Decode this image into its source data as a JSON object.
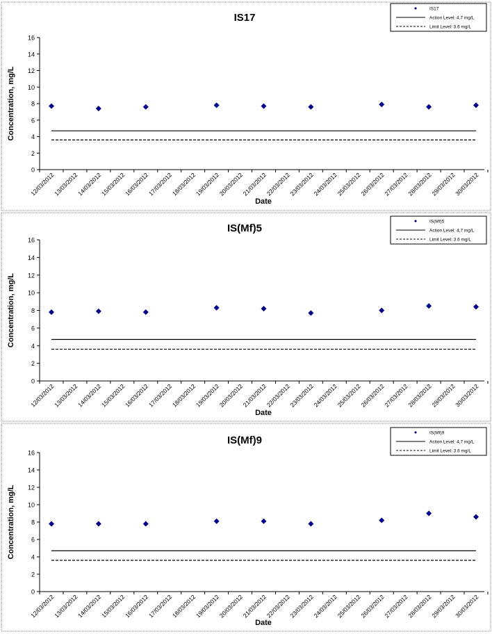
{
  "chart_data": [
    {
      "type": "scatter",
      "title": "IS17",
      "xlabel": "Date",
      "ylabel": "Concentration, mg/L",
      "ylim": [
        0,
        16
      ],
      "yticks": [
        "0",
        "2",
        "4",
        "6",
        "8",
        "10",
        "12",
        "14",
        "16"
      ],
      "categories": [
        "12/03/2012",
        "13/03/2012",
        "14/03/2012",
        "15/03/2012",
        "16/03/2012",
        "17/03/2012",
        "18/03/2012",
        "19/03/2012",
        "20/03/2012",
        "21/03/2012",
        "22/03/2012",
        "23/03/2012",
        "24/03/2012",
        "25/03/2012",
        "26/03/2012",
        "27/03/2012",
        "28/03/2012",
        "29/03/2012",
        "30/03/2012"
      ],
      "series": [
        {
          "name": "IS17",
          "x": [
            "12/03/2012",
            "14/03/2012",
            "16/03/2012",
            "19/03/2012",
            "21/03/2012",
            "23/03/2012",
            "26/03/2012",
            "28/03/2012",
            "30/03/2012"
          ],
          "y": [
            7.7,
            7.4,
            7.6,
            7.8,
            7.7,
            7.6,
            7.9,
            7.6,
            7.8
          ]
        }
      ],
      "reference_lines": [
        {
          "name": "Action Level: 4.7 mg/L",
          "value": 4.7,
          "style": "solid"
        },
        {
          "name": "Limit Level: 3.6 mg/L",
          "value": 3.6,
          "style": "dashed"
        }
      ],
      "legend": "top-right",
      "grid": false
    },
    {
      "type": "scatter",
      "title": "IS(Mf)5",
      "xlabel": "Date",
      "ylabel": "Concentration, mg/L",
      "ylim": [
        0,
        16
      ],
      "yticks": [
        "0",
        "2",
        "4",
        "6",
        "8",
        "10",
        "12",
        "14",
        "16"
      ],
      "categories": [
        "12/03/2012",
        "13/03/2012",
        "14/03/2012",
        "15/03/2012",
        "16/03/2012",
        "17/03/2012",
        "18/03/2012",
        "19/03/2012",
        "20/03/2012",
        "21/03/2012",
        "22/03/2012",
        "23/03/2012",
        "24/03/2012",
        "25/03/2012",
        "26/03/2012",
        "27/03/2012",
        "28/03/2012",
        "29/03/2012",
        "30/03/2012"
      ],
      "series": [
        {
          "name": "IS(Mf)5",
          "x": [
            "12/03/2012",
            "14/03/2012",
            "16/03/2012",
            "19/03/2012",
            "21/03/2012",
            "23/03/2012",
            "26/03/2012",
            "28/03/2012",
            "30/03/2012"
          ],
          "y": [
            7.8,
            7.9,
            7.8,
            8.3,
            8.2,
            7.7,
            8.0,
            8.5,
            8.4
          ]
        }
      ],
      "reference_lines": [
        {
          "name": "Action Level: 4.7 mg/L",
          "value": 4.7,
          "style": "solid"
        },
        {
          "name": "Limit Level: 3.6 mg/L",
          "value": 3.6,
          "style": "dashed"
        }
      ],
      "legend": "top-right",
      "grid": false
    },
    {
      "type": "scatter",
      "title": "IS(Mf)9",
      "xlabel": "Date",
      "ylabel": "Concentration, mg/L",
      "ylim": [
        0,
        16
      ],
      "yticks": [
        "0",
        "2",
        "4",
        "6",
        "8",
        "10",
        "12",
        "14",
        "16"
      ],
      "categories": [
        "12/03/2012",
        "13/03/2012",
        "14/03/2012",
        "15/03/2012",
        "16/03/2012",
        "17/03/2012",
        "18/03/2012",
        "19/03/2012",
        "20/03/2012",
        "21/03/2012",
        "22/03/2012",
        "23/03/2012",
        "24/03/2012",
        "25/03/2012",
        "26/03/2012",
        "27/03/2012",
        "28/03/2012",
        "29/03/2012",
        "30/03/2012"
      ],
      "series": [
        {
          "name": "IS(Mf)9",
          "x": [
            "12/03/2012",
            "14/03/2012",
            "16/03/2012",
            "19/03/2012",
            "21/03/2012",
            "23/03/2012",
            "26/03/2012",
            "28/03/2012",
            "30/03/2012"
          ],
          "y": [
            7.8,
            7.8,
            7.8,
            8.1,
            8.1,
            7.8,
            8.2,
            9.0,
            8.6
          ]
        }
      ],
      "reference_lines": [
        {
          "name": "Action Level: 4.7 mg/L",
          "value": 4.7,
          "style": "solid"
        },
        {
          "name": "Limit Level: 3.6 mg/L",
          "value": 3.6,
          "style": "dashed"
        }
      ],
      "legend": "top-right",
      "grid": false
    }
  ],
  "colors": {
    "marker": "#00008b",
    "line": "#000000",
    "panel_border": "#7f7f7f",
    "background": "#ffffff"
  }
}
